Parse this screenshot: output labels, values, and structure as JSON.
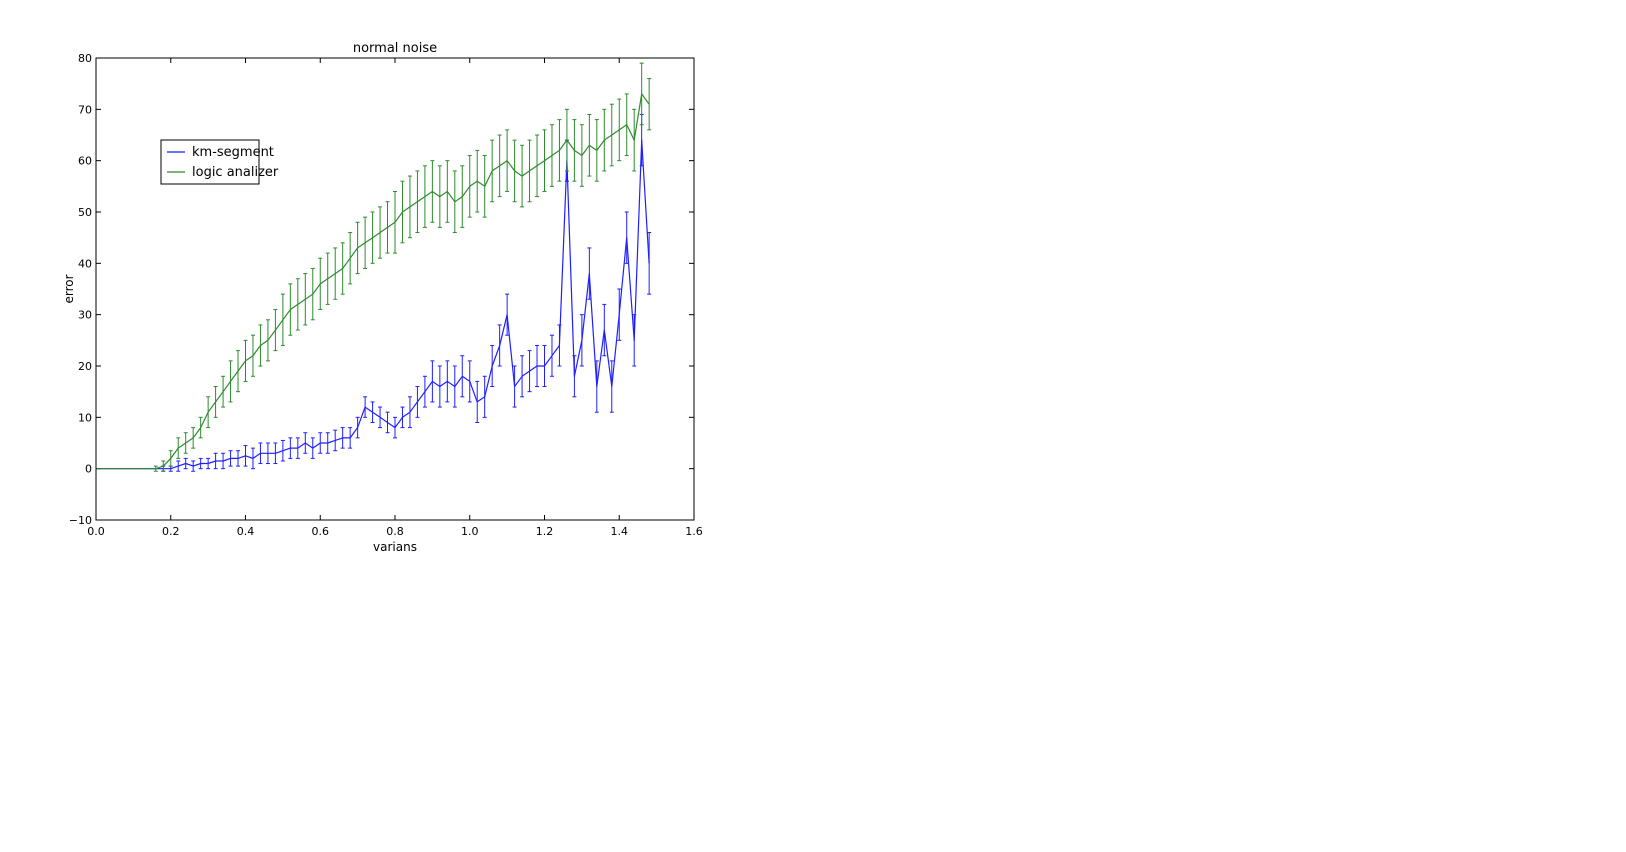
{
  "chart_data": {
    "type": "line",
    "title": "normal noise",
    "xlabel": "varians",
    "ylabel": "error",
    "xlim": [
      0.0,
      1.6
    ],
    "ylim": [
      -10,
      80
    ],
    "xticks": [
      0.0,
      0.2,
      0.4,
      0.6,
      0.8,
      1.0,
      1.2,
      1.4,
      1.6
    ],
    "xtick_labels": [
      "0.0",
      "0.2",
      "0.4",
      "0.6",
      "0.8",
      "1.0",
      "1.2",
      "1.4",
      "1.6"
    ],
    "yticks": [
      -10,
      0,
      10,
      20,
      30,
      40,
      50,
      60,
      70,
      80
    ],
    "ytick_labels": [
      "−10",
      "0",
      "10",
      "20",
      "30",
      "40",
      "50",
      "60",
      "70",
      "80"
    ],
    "grid": false,
    "legend_position": "upper-left",
    "x": [
      0.0,
      0.05,
      0.1,
      0.14,
      0.16,
      0.18,
      0.2,
      0.22,
      0.24,
      0.26,
      0.28,
      0.3,
      0.32,
      0.34,
      0.36,
      0.38,
      0.4,
      0.42,
      0.44,
      0.46,
      0.48,
      0.5,
      0.52,
      0.54,
      0.56,
      0.58,
      0.6,
      0.62,
      0.64,
      0.66,
      0.68,
      0.7,
      0.72,
      0.74,
      0.76,
      0.78,
      0.8,
      0.82,
      0.84,
      0.86,
      0.88,
      0.9,
      0.92,
      0.94,
      0.96,
      0.98,
      1.0,
      1.02,
      1.04,
      1.06,
      1.08,
      1.1,
      1.12,
      1.14,
      1.16,
      1.18,
      1.2,
      1.22,
      1.24,
      1.26,
      1.28,
      1.3,
      1.32,
      1.34,
      1.36,
      1.38,
      1.4,
      1.42,
      1.44,
      1.46,
      1.48
    ],
    "series": [
      {
        "name": "km-segment",
        "color": "#1f1fff",
        "values": [
          0,
          0,
          0,
          0,
          0,
          0,
          0,
          0.5,
          1,
          0.5,
          1,
          1,
          1.5,
          1.5,
          2,
          2,
          2.5,
          2,
          3,
          3,
          3,
          3.5,
          4,
          4,
          5,
          4,
          5,
          5,
          5.5,
          6,
          6,
          8,
          12,
          11,
          10,
          9,
          8,
          10,
          11,
          13,
          15,
          17,
          16,
          17,
          16,
          18,
          17,
          13,
          14,
          20,
          24,
          30,
          16,
          18,
          19,
          20,
          20,
          22,
          24,
          60,
          18,
          25,
          38,
          16,
          27,
          16,
          30,
          45,
          25,
          64,
          40
        ],
        "errors": [
          0,
          0,
          0,
          0,
          0,
          0.5,
          0.5,
          1,
          1,
          1,
          1,
          1,
          1.5,
          1.5,
          1.5,
          1.5,
          2,
          2,
          2,
          2,
          2,
          2,
          2,
          2,
          2,
          2,
          2,
          2,
          2,
          2,
          2,
          2,
          2,
          2,
          2,
          2,
          2,
          2,
          3,
          3,
          3,
          4,
          4,
          4,
          4,
          4,
          4,
          4,
          4,
          4,
          4,
          4,
          4,
          4,
          4,
          4,
          4,
          4,
          4,
          4,
          4,
          5,
          5,
          5,
          5,
          5,
          5,
          5,
          5,
          5,
          6
        ]
      },
      {
        "name": "logic analizer",
        "color": "#2e8b2e",
        "values": [
          0,
          0,
          0,
          0,
          0,
          0.5,
          2,
          4,
          5,
          6,
          8,
          11,
          13,
          15,
          17,
          19,
          21,
          22,
          24,
          25,
          27,
          29,
          31,
          32,
          33,
          34,
          36,
          37,
          38,
          39,
          41,
          43,
          44,
          45,
          46,
          47,
          48,
          50,
          51,
          52,
          53,
          54,
          53,
          54,
          52,
          53,
          55,
          56,
          55,
          58,
          59,
          60,
          58,
          57,
          58,
          59,
          60,
          61,
          62,
          64,
          62,
          61,
          63,
          62,
          64,
          65,
          66,
          67,
          64,
          73,
          71
        ],
        "errors": [
          0,
          0,
          0,
          0,
          0.5,
          1,
          1.5,
          2,
          2,
          2,
          2,
          3,
          3,
          3,
          4,
          4,
          4,
          4,
          4,
          4,
          4,
          5,
          5,
          5,
          5,
          5,
          5,
          5,
          5,
          5,
          5,
          5,
          5,
          5,
          5,
          5,
          6,
          6,
          6,
          6,
          6,
          6,
          6,
          6,
          6,
          6,
          6,
          6,
          6,
          6,
          6,
          6,
          6,
          6,
          6,
          6,
          6,
          6,
          6,
          6,
          6,
          6,
          6,
          6,
          6,
          6,
          6,
          6,
          6,
          6,
          5
        ]
      }
    ]
  }
}
